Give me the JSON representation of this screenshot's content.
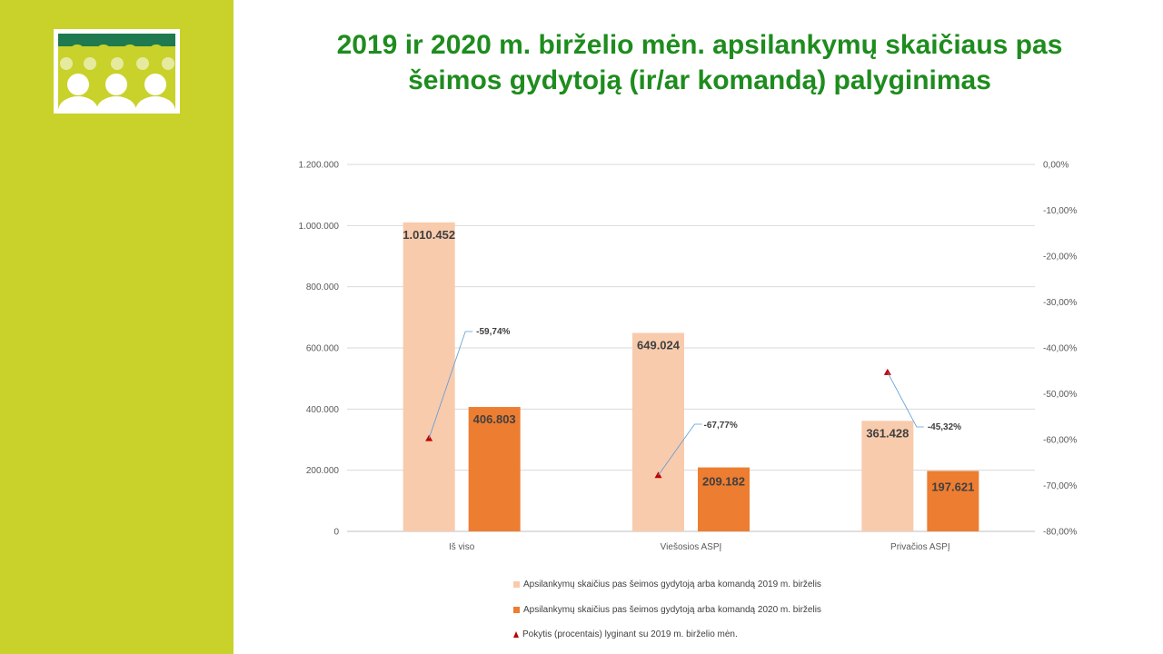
{
  "slide": {
    "title_line1": "2019 ir 2020 m. birželio mėn. apsilankymų skaičiaus pas",
    "title_line2": "šeimos gydytoją (ir/ar komandą) palyginimas",
    "sidebar_color": "#c8d22a",
    "title_color": "#1e8c1e",
    "logo_icon": "people-group-icon",
    "logo_colors": {
      "bg": "#c8d22a",
      "band": "#1f7a4f",
      "figures": "#ffffff"
    }
  },
  "chart_data": {
    "type": "bar",
    "categories": [
      "Iš viso",
      "Viešosios ASPĮ",
      "Privačios ASPĮ"
    ],
    "series": [
      {
        "name": "Apsilankymų skaičius pas šeimos gydytoją arba komandą 2019 m. birželis",
        "type": "bar",
        "axis": "left",
        "color": "#f8cbad",
        "values": [
          1010452,
          649024,
          361428
        ],
        "labels": [
          "1.010.452",
          "649.024",
          "361.428"
        ]
      },
      {
        "name": "Apsilankymų skaičius pas šeimos gydytoją arba komandą 2020 m. birželis",
        "type": "bar",
        "axis": "left",
        "color": "#ed7d31",
        "values": [
          406803,
          209182,
          197621
        ],
        "labels": [
          "406.803",
          "209.182",
          "197.621"
        ]
      },
      {
        "name": "Pokytis (procentais) lyginant su 2019 m. birželio mėn.",
        "type": "scatter",
        "marker": "triangle",
        "axis": "right",
        "color": "#c00000",
        "values": [
          -59.74,
          -67.77,
          -45.32
        ],
        "labels": [
          "-59,74%",
          "-67,77%",
          "-45,32%"
        ]
      }
    ],
    "y_left": {
      "min": 0,
      "max": 1200000,
      "ticks": [
        0,
        200000,
        400000,
        600000,
        800000,
        1000000,
        1200000
      ],
      "tick_labels": [
        "0",
        "200.000",
        "400.000",
        "600.000",
        "800.000",
        "1.000.000",
        "1.200.000"
      ]
    },
    "y_right": {
      "min": -80,
      "max": 0,
      "ticks": [
        -80,
        -70,
        -60,
        -50,
        -40,
        -30,
        -20,
        -10,
        0
      ],
      "tick_labels": [
        "-80,00%",
        "-70,00%",
        "-60,00%",
        "-50,00%",
        "-40,00%",
        "-30,00%",
        "-20,00%",
        "-10,00%",
        "0,00%"
      ]
    },
    "grid": true,
    "legend_position": "bottom"
  }
}
